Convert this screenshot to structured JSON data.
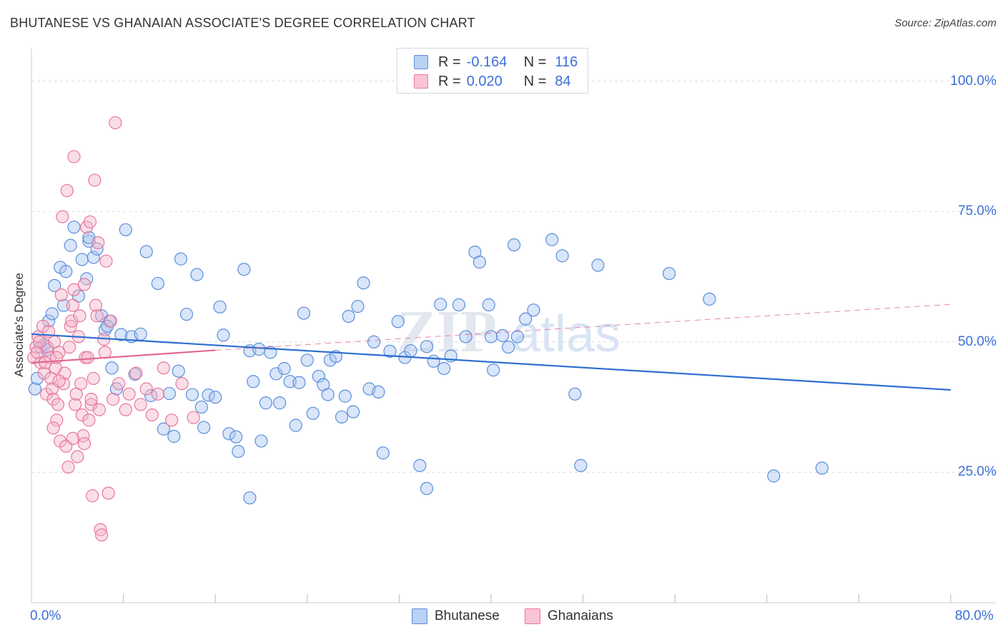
{
  "title": "BHUTANESE VS GHANAIAN ASSOCIATE'S DEGREE CORRELATION CHART",
  "source": "Source: ZipAtlas.com",
  "watermark": {
    "zip": "ZIP",
    "atlas": "atlas"
  },
  "legend_top": {
    "rows": [
      {
        "r_label": "R =",
        "r_value": "-0.164",
        "n_label": "N =",
        "n_value": "116"
      },
      {
        "r_label": "R =",
        "r_value": "0.020",
        "n_label": "N =",
        "n_value": "84"
      }
    ]
  },
  "legend_bottom": [
    "Bhutanese",
    "Ghanaians"
  ],
  "colors": {
    "blue_fill": "#aac6ef",
    "blue_stroke": "#5b8fdb",
    "blue_line": "#2e6fd0",
    "pink_fill": "#f4b6ca",
    "pink_stroke": "#e8779d",
    "pink_line": "#e2698f",
    "grid": "#dddddd",
    "tick_text": "#3b6fd8"
  },
  "chart_data": {
    "type": "scatter",
    "title": "BHUTANESE VS GHANAIAN ASSOCIATE'S DEGREE CORRELATION CHART",
    "xlabel": "",
    "ylabel": "Associate's Degree",
    "xlim": [
      0,
      80
    ],
    "ylim": [
      0,
      105
    ],
    "x_tick_labels": [
      "0.0%",
      "80.0%"
    ],
    "y_tick_labels": [
      "100.0%",
      "75.0%",
      "50.0%",
      "25.0%"
    ],
    "y_gridlines": [
      100,
      75,
      50,
      25
    ],
    "legend": "top-center",
    "series": [
      {
        "name": "Bhutanese",
        "r": -0.164,
        "n": 116,
        "trend": {
          "x": [
            0,
            80
          ],
          "y": [
            51.5,
            40.8
          ]
        },
        "points": [
          [
            0.3,
            41
          ],
          [
            0.5,
            43
          ],
          [
            0.8,
            49
          ],
          [
            1.1,
            49.5
          ],
          [
            1.4,
            48.5
          ],
          [
            1.5,
            54
          ],
          [
            1.8,
            55.4
          ],
          [
            2,
            60.8
          ],
          [
            2.5,
            64.3
          ],
          [
            3,
            63.5
          ],
          [
            3.4,
            68.5
          ],
          [
            3.7,
            72
          ],
          [
            4.1,
            58.8
          ],
          [
            4.4,
            65.8
          ],
          [
            4.8,
            62.1
          ],
          [
            5,
            69.3
          ],
          [
            5.4,
            66.2
          ],
          [
            5.7,
            67.8
          ],
          [
            6.1,
            55
          ],
          [
            6.4,
            52.3
          ],
          [
            6.8,
            54
          ],
          [
            7,
            45
          ],
          [
            7.4,
            41
          ],
          [
            7.8,
            51.4
          ],
          [
            8.2,
            71.5
          ],
          [
            8.7,
            51
          ],
          [
            9,
            43.8
          ],
          [
            9.5,
            51.5
          ],
          [
            10,
            67.3
          ],
          [
            10.4,
            39.7
          ],
          [
            11,
            61.2
          ],
          [
            11.5,
            33.3
          ],
          [
            12,
            40.1
          ],
          [
            12.4,
            31.9
          ],
          [
            12.8,
            44.4
          ],
          [
            13,
            65.9
          ],
          [
            13.5,
            55.3
          ],
          [
            14,
            39.9
          ],
          [
            14.4,
            62.9
          ],
          [
            14.8,
            37.5
          ],
          [
            15,
            33.6
          ],
          [
            15.4,
            39.8
          ],
          [
            16,
            39.4
          ],
          [
            16.4,
            56.7
          ],
          [
            16.7,
            51.3
          ],
          [
            17.2,
            32.4
          ],
          [
            17.8,
            31.8
          ],
          [
            18,
            29
          ],
          [
            18.5,
            63.9
          ],
          [
            19,
            48.3
          ],
          [
            19.3,
            42.4
          ],
          [
            19.8,
            48.6
          ],
          [
            20,
            31
          ],
          [
            20.4,
            38.3
          ],
          [
            20.8,
            48
          ],
          [
            21.3,
            43.9
          ],
          [
            21.6,
            38.3
          ],
          [
            22,
            44.9
          ],
          [
            22.5,
            42.4
          ],
          [
            23,
            34
          ],
          [
            23.3,
            42.2
          ],
          [
            23.7,
            55.5
          ],
          [
            24,
            46.5
          ],
          [
            24.5,
            36.3
          ],
          [
            25,
            43.4
          ],
          [
            25.4,
            41.8
          ],
          [
            25.8,
            39.9
          ],
          [
            26,
            46.5
          ],
          [
            26.5,
            47.2
          ],
          [
            27,
            35.6
          ],
          [
            27.3,
            39.6
          ],
          [
            27.6,
            54.9
          ],
          [
            28,
            36.6
          ],
          [
            28.4,
            56.8
          ],
          [
            28.9,
            61.3
          ],
          [
            29.4,
            41
          ],
          [
            29.8,
            50
          ],
          [
            30.2,
            40.4
          ],
          [
            30.6,
            28.7
          ],
          [
            31.2,
            48.2
          ],
          [
            31.9,
            53.9
          ],
          [
            32.5,
            47
          ],
          [
            33,
            48.3
          ],
          [
            33.8,
            26.3
          ],
          [
            34.4,
            49.1
          ],
          [
            35,
            46.3
          ],
          [
            35.6,
            57.2
          ],
          [
            35.9,
            44.9
          ],
          [
            36.5,
            47.3
          ],
          [
            37.2,
            57.1
          ],
          [
            37.8,
            51
          ],
          [
            38.6,
            67.2
          ],
          [
            39,
            65.3
          ],
          [
            39.8,
            57.1
          ],
          [
            40,
            51
          ],
          [
            40.2,
            44.6
          ],
          [
            41,
            51.2
          ],
          [
            41.5,
            49
          ],
          [
            42,
            68.6
          ],
          [
            42.3,
            51
          ],
          [
            43,
            54.4
          ],
          [
            43.7,
            56.1
          ],
          [
            45.3,
            69.6
          ],
          [
            46.2,
            66.5
          ],
          [
            47.3,
            40
          ],
          [
            47.8,
            26.3
          ],
          [
            49.3,
            64.7
          ],
          [
            55.5,
            63.1
          ],
          [
            59,
            58.2
          ],
          [
            64.6,
            24.3
          ],
          [
            68.8,
            25.8
          ],
          [
            34.4,
            21.9
          ],
          [
            19,
            20.1
          ],
          [
            2.8,
            57
          ],
          [
            5,
            70
          ],
          [
            6.6,
            53
          ]
        ]
      },
      {
        "name": "Ghanaians",
        "r": 0.02,
        "n": 84,
        "trend_solid": {
          "x": [
            0,
            16
          ],
          "y": [
            46,
            48.4
          ]
        },
        "trend_dashed": {
          "x": [
            16,
            80
          ],
          "y": [
            48.4,
            57.2
          ]
        },
        "points": [
          [
            0.2,
            47
          ],
          [
            0.4,
            49
          ],
          [
            0.6,
            51
          ],
          [
            0.8,
            46
          ],
          [
            1,
            53
          ],
          [
            1.1,
            44
          ],
          [
            1.3,
            40
          ],
          [
            1.4,
            49
          ],
          [
            1.5,
            52
          ],
          [
            1.6,
            47
          ],
          [
            1.7,
            43
          ],
          [
            1.8,
            41
          ],
          [
            1.9,
            39
          ],
          [
            2,
            50
          ],
          [
            2.1,
            45
          ],
          [
            2.2,
            35
          ],
          [
            2.3,
            38
          ],
          [
            2.4,
            48
          ],
          [
            2.5,
            31
          ],
          [
            2.6,
            59
          ],
          [
            2.7,
            74
          ],
          [
            2.8,
            42
          ],
          [
            2.9,
            44
          ],
          [
            3,
            30
          ],
          [
            3.1,
            79
          ],
          [
            3.2,
            26
          ],
          [
            3.3,
            49
          ],
          [
            3.4,
            53
          ],
          [
            3.5,
            54
          ],
          [
            3.6,
            57
          ],
          [
            3.7,
            60
          ],
          [
            3.7,
            85.5
          ],
          [
            3.8,
            38
          ],
          [
            3.9,
            40
          ],
          [
            4,
            28
          ],
          [
            4.1,
            51
          ],
          [
            4.2,
            55
          ],
          [
            4.3,
            42
          ],
          [
            4.4,
            36
          ],
          [
            4.5,
            32
          ],
          [
            4.6,
            61
          ],
          [
            4.7,
            47
          ],
          [
            4.8,
            72
          ],
          [
            4.9,
            47
          ],
          [
            5,
            35
          ],
          [
            5.1,
            73
          ],
          [
            5.2,
            38
          ],
          [
            5.3,
            20.5
          ],
          [
            5.4,
            43
          ],
          [
            5.5,
            81
          ],
          [
            5.6,
            57
          ],
          [
            5.7,
            55
          ],
          [
            5.8,
            69
          ],
          [
            5.9,
            37
          ],
          [
            6,
            14
          ],
          [
            6.1,
            13
          ],
          [
            6.3,
            50.5
          ],
          [
            6.5,
            65.5
          ],
          [
            6.7,
            21
          ],
          [
            6.9,
            54
          ],
          [
            7.1,
            39
          ],
          [
            7.3,
            92
          ],
          [
            7.6,
            42
          ],
          [
            8.2,
            37
          ],
          [
            8.5,
            40
          ],
          [
            9.1,
            44
          ],
          [
            9.5,
            38
          ],
          [
            10,
            41
          ],
          [
            10.5,
            36
          ],
          [
            11,
            40
          ],
          [
            11.5,
            45
          ],
          [
            12.2,
            35
          ],
          [
            13.1,
            42
          ],
          [
            14.1,
            35.5
          ],
          [
            0.5,
            48
          ],
          [
            0.7,
            50
          ],
          [
            1.2,
            46
          ],
          [
            2.4,
            42.5
          ],
          [
            1.9,
            33.5
          ],
          [
            3.6,
            31.5
          ],
          [
            4.6,
            30.5
          ],
          [
            5.2,
            39
          ],
          [
            6.4,
            48
          ],
          [
            2.2,
            47
          ]
        ]
      }
    ]
  }
}
